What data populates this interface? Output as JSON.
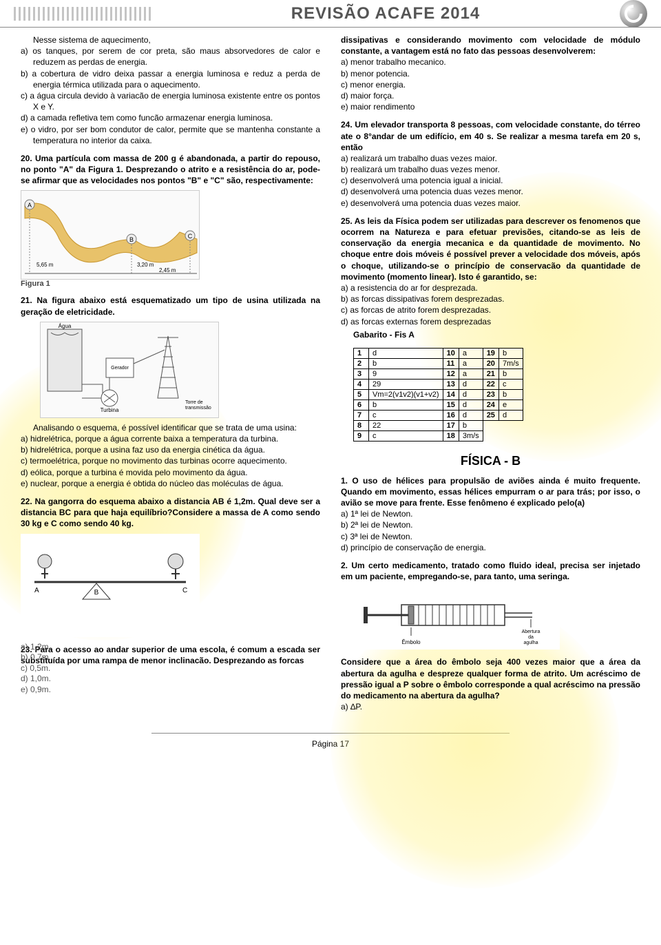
{
  "header": {
    "title": "REVISÃO ACAFE 2014"
  },
  "left": {
    "intro": "Nesse sistema de aquecimento,",
    "q19": {
      "a": "a) os tanques, por serem de cor preta, são maus absorvedores de calor e reduzem as perdas de energia.",
      "b": "b) a cobertura de vidro deixa passar a energia luminosa e reduz a perda de energia térmica utilizada para o aquecimento.",
      "c": "c) a água circula devido à variacão de energia luminosa existente entre os pontos X e Y.",
      "d": "d) a camada refletiva tem como funcão armazenar energia luminosa.",
      "e": "e) o vidro, por ser bom condutor de calor, permite que se mantenha constante a temperatura no interior da caixa."
    },
    "q20": {
      "text": "20. Uma partícula com massa de 200 g é abandonada, a partir do repouso, no ponto \"A\" da Figura 1. Desprezando o atrito e a resistência do ar, pode-se afirmar que as velocidades nos pontos \"B\" e \"C\" são, respectivamente:",
      "fig_labels": {
        "A": "A",
        "B": "B",
        "C": "C",
        "hA": "5,65 m",
        "hB": "3,20 m",
        "hC": "2,45 m",
        "caption": "Figura 1"
      }
    },
    "q21": {
      "text": "21. Na figura abaixo está esquematizado um tipo de usina utilizada na geração de eletricidade.",
      "lead": "Analisando o esquema, é possível identificar que se trata de uma usina:",
      "a": "a) hidrelétrica, porque a água corrente baixa a temperatura da turbina.",
      "b": "b) hidrelétrica, porque a usina faz uso da energia cinética da água.",
      "c": "c) termoelétrica, porque no movimento das turbinas ocorre aquecimento.",
      "d": "d) eólica, porque a turbina é movida pelo movimento da água.",
      "e": "e) nuclear, porque a energia é obtida do núcleo das moléculas de água.",
      "fig_labels": {
        "agua": "Água",
        "gerador": "Gerador",
        "turbina": "Turbina",
        "torre": "Torre de\\ntransmissão"
      }
    },
    "q22": {
      "text": "22. Na gangorra do esquema abaixo a distancia AB é 1,2m. Qual deve ser a distancia BC para que haja equilíbrio?Considere a massa de A como sendo 30 kg e C como sendo 40 kg.",
      "opts": [
        "a) 1,2m.",
        "b) 0,7m.",
        "c) 0,5m.",
        "d) 1,0m.",
        "e) 0,9m."
      ]
    },
    "q23": {
      "text": "23. Para o acesso ao andar superior de uma escola, é comum a escada ser substituída por uma rampa de menor inclinacão. Desprezando as forcas"
    }
  },
  "right": {
    "q23cont": {
      "lead": "dissipativas e considerando movimento com velocidade de módulo constante, a vantagem está no fato das pessoas desenvolverem:",
      "a": "a) menor trabalho mecanico.",
      "b": "b) menor potencia.",
      "c": "c) menor energia.",
      "d": "d) maior força.",
      "e": "e) maior rendimento"
    },
    "q24": {
      "text": "24. Um elevador transporta 8 pessoas, com velocidade constante, do térreo ate o 8°andar de um edifício, em 40 s. Se realizar a mesma tarefa em 20 s, então",
      "a": "a) realizará um trabalho duas vezes maior.",
      "b": "b) realizará um trabalho duas vezes menor.",
      "c": "c) desenvolverá uma potencia igual a inicial.",
      "d": "d) desenvolverá uma potencia duas vezes menor.",
      "e": "e) desenvolverá uma potencia duas vezes maior."
    },
    "q25": {
      "text": "25. As leis da Física podem ser utilizadas para descrever os fenomenos que ocorrem na Natureza e para efetuar previsões, citando-se as leis de conservação da energia mecanica e da quantidade de movimento. No choque entre dois móveis é possível prever a velocidade dos móveis, após o choque, utilizando-se o princípio de conservacão da quantidade de movimento (momento linear). Isto é garantido, se:",
      "a": "a) a resistencia do ar for desprezada.",
      "b": "b) as forcas dissipativas forem desprezadas.",
      "c": "c) as forcas de atrito forem desprezadas.",
      "d": "d) as forcas externas forem desprezadas"
    },
    "gabarito": {
      "title": "Gabarito - Fis A",
      "rows": [
        [
          "1",
          "d",
          "10",
          "a",
          "19",
          "b"
        ],
        [
          "2",
          "b",
          "11",
          "a",
          "20",
          "7m/s"
        ],
        [
          "3",
          "9",
          "12",
          "a",
          "21",
          "b"
        ],
        [
          "4",
          "29",
          "13",
          "d",
          "22",
          "c"
        ],
        [
          "5",
          "Vm=2(v1v2)(v1+v2)",
          "14",
          "d",
          "23",
          "b"
        ],
        [
          "6",
          "b",
          "15",
          "d",
          "24",
          "e"
        ],
        [
          "7",
          "c",
          "16",
          "d",
          "25",
          "d"
        ],
        [
          "8",
          "22",
          "17",
          "b",
          "",
          ""
        ],
        [
          "9",
          "c",
          "18",
          "3m/s",
          "",
          ""
        ]
      ]
    },
    "sectionB": "FÍSICA - B",
    "qb1": {
      "text": "1. O uso de hélices para propulsão de aviões ainda é muito frequente. Quando em movimento, essas hélices empurram o ar para trás; por isso, o avião se move para frente. Esse fenômeno é explicado pelo(a)",
      "a": "a) 1ª lei de Newton.",
      "b": "b) 2ª lei de Newton.",
      "c": "c) 3ª lei de Newton.",
      "d": "d) princípio de conservação de energia."
    },
    "qb2": {
      "text": "2.    Um certo medicamento, tratado como fluido ideal, precisa ser injetado em um paciente, empregando-se, para tanto, uma seringa.",
      "fig_labels": {
        "embolo": "Êmbolo",
        "abertura": "Abertura\\nda\\nagulha"
      },
      "cont": "Considere que a área do êmbolo seja 400 vezes maior que a área da abertura da agulha e despreze qualquer forma de atrito. Um acréscimo de pressão igual a P sobre o êmbolo corresponde a qual acréscimo na pressão do medicamento na abertura da agulha?",
      "a": "a) ∆P."
    }
  },
  "footer": {
    "page": "Página 17"
  }
}
